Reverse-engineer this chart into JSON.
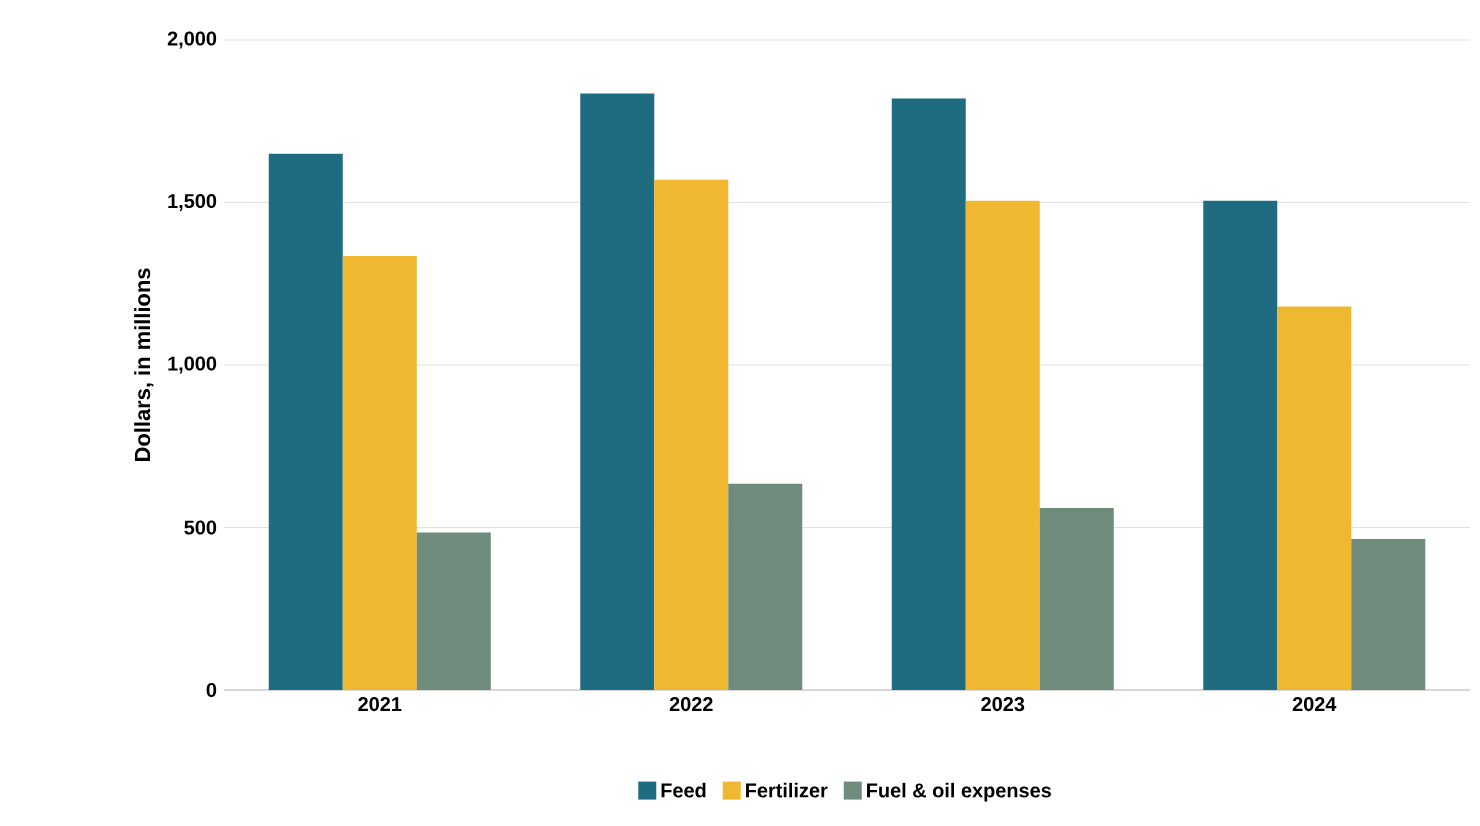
{
  "chart_data": {
    "type": "bar",
    "ylabel": "Dollars, in millions",
    "categories": [
      "2021",
      "2022",
      "2023",
      "2024"
    ],
    "series": [
      {
        "name": "Feed",
        "color": "#1f6b82",
        "values": [
          1650,
          1835,
          1820,
          1505
        ]
      },
      {
        "name": "Fertilizer",
        "color": "#f0b730",
        "values": [
          1335,
          1570,
          1505,
          1180
        ]
      },
      {
        "name": "Fuel & oil expenses",
        "color": "#6e8b7b",
        "values": [
          485,
          635,
          560,
          465
        ]
      }
    ],
    "ylim": [
      0,
      2000
    ],
    "yticks": [
      {
        "value": 0,
        "label": "0"
      },
      {
        "value": 500,
        "label": "500"
      },
      {
        "value": 1000,
        "label": "1,000"
      },
      {
        "value": 1500,
        "label": "1,500"
      },
      {
        "value": 2000,
        "label": "2,000"
      }
    ],
    "grid": "y",
    "legend": "bottom"
  }
}
